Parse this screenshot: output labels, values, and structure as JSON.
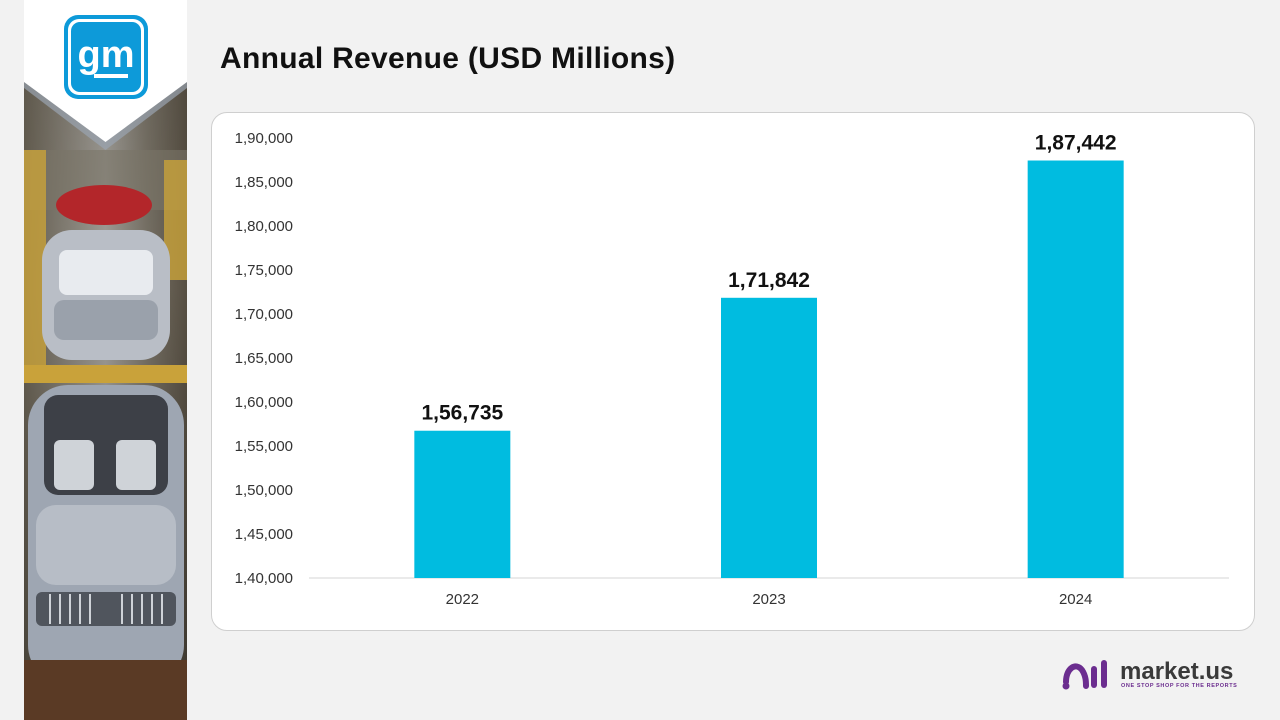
{
  "page": {
    "title": "Annual Revenue (USD Millions)"
  },
  "logo": {
    "text": "gm",
    "icon": "gm-logo-icon",
    "color": "#0d9ad9"
  },
  "brand": {
    "name": "market.us",
    "tagline": "ONE STOP SHOP FOR THE REPORTS",
    "icon": "market-us-logo-icon",
    "color": "#6b2d8f"
  },
  "chart_data": {
    "type": "bar",
    "title": "Annual Revenue (USD Millions)",
    "xlabel": "",
    "ylabel": "",
    "categories": [
      "2022",
      "2023",
      "2024"
    ],
    "values": [
      156735,
      171842,
      187442
    ],
    "value_labels": [
      "1,56,735",
      "1,71,842",
      "1,87,442"
    ],
    "ylim": [
      140000,
      190000
    ],
    "yticks": [
      140000,
      145000,
      150000,
      155000,
      160000,
      165000,
      170000,
      175000,
      180000,
      185000,
      190000
    ],
    "ytick_labels": [
      "1,40,000",
      "1,45,000",
      "1,50,000",
      "1,55,000",
      "1,60,000",
      "1,65,000",
      "1,70,000",
      "1,75,000",
      "1,80,000",
      "1,85,000",
      "1,90,000"
    ],
    "grid": false,
    "bar_color": "#00bce0",
    "legend": "none"
  }
}
